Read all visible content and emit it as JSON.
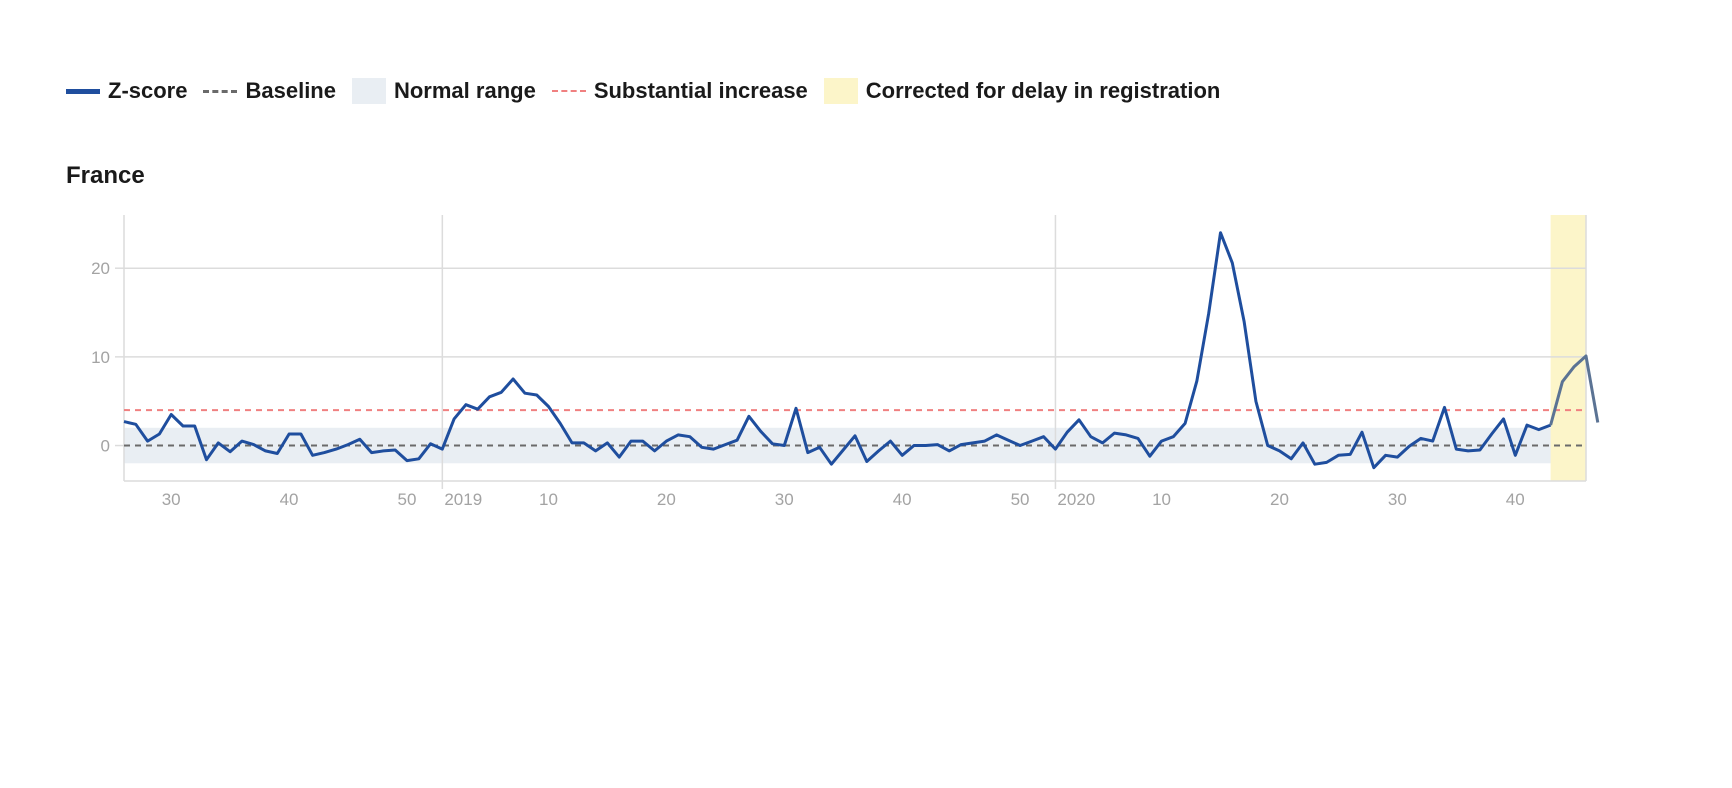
{
  "legend": {
    "zscore": "Z-score",
    "baseline": "Baseline",
    "normal_range": "Normal range",
    "substantial_increase": "Substantial increase",
    "corrected": "Corrected for delay in registration"
  },
  "colors": {
    "zscore": "#1f4e9e",
    "zscore_corrected": "#5b7394",
    "baseline": "#6a6a6a",
    "normal_range": "#e9eef3",
    "substantial_increase": "#f08080",
    "corrected_band": "#fcf5c9",
    "grid": "#dcdcdc",
    "tick_text": "#a3a3a3"
  },
  "chart_data": {
    "type": "line",
    "title": "France",
    "xlabel": "",
    "ylabel": "",
    "ylim": [
      -4,
      26
    ],
    "yticks": [
      0,
      10,
      20
    ],
    "x_axis_type": "iso-week",
    "x_start": {
      "year": 2018,
      "week": 26
    },
    "x_end": {
      "year": 2020,
      "week": 46
    },
    "weeks_per_year": {
      "2018": 52,
      "2019": 52,
      "2020": 53
    },
    "xticks": [
      {
        "label": "30",
        "year": 2018,
        "week": 30
      },
      {
        "label": "40",
        "year": 2018,
        "week": 40
      },
      {
        "label": "50",
        "year": 2018,
        "week": 50
      },
      {
        "label": "2019",
        "year": 2019,
        "week": 1
      },
      {
        "label": "10",
        "year": 2019,
        "week": 10
      },
      {
        "label": "20",
        "year": 2019,
        "week": 20
      },
      {
        "label": "30",
        "year": 2019,
        "week": 30
      },
      {
        "label": "40",
        "year": 2019,
        "week": 40
      },
      {
        "label": "50",
        "year": 2019,
        "week": 50
      },
      {
        "label": "2020",
        "year": 2020,
        "week": 1
      },
      {
        "label": "10",
        "year": 2020,
        "week": 10
      },
      {
        "label": "20",
        "year": 2020,
        "week": 20
      },
      {
        "label": "30",
        "year": 2020,
        "week": 30
      },
      {
        "label": "40",
        "year": 2020,
        "week": 40
      }
    ],
    "year_lines": [
      {
        "year": 2019,
        "week": 1
      },
      {
        "year": 2020,
        "week": 1
      }
    ],
    "baseline": 0,
    "normal_range": [
      -2,
      2
    ],
    "substantial_increase": 4,
    "corrected_from": {
      "year": 2020,
      "week": 43
    },
    "series": [
      {
        "values": [
          2.7,
          2.4,
          0.5,
          1.3,
          3.5,
          2.2,
          2.2,
          -1.6,
          0.3,
          -0.7,
          0.5,
          0.1,
          -0.6,
          -0.9,
          1.3,
          1.3,
          -1.1,
          -0.8,
          -0.4,
          0.1,
          0.7,
          -0.8,
          -0.6,
          -0.5,
          -1.7,
          -1.5,
          0.2,
          -0.4,
          3.0,
          4.6,
          4.1,
          5.5,
          6.0,
          7.5,
          5.9,
          5.7,
          4.4,
          2.5,
          0.3,
          0.3,
          -0.6,
          0.3,
          -1.3,
          0.5,
          0.5,
          -0.6,
          0.5,
          1.2,
          1.0,
          -0.2,
          -0.4,
          0.1,
          0.6,
          3.3,
          1.6,
          0.2,
          0.0,
          4.2,
          -0.8,
          -0.2,
          -2.1,
          -0.5,
          1.1,
          -1.8,
          -0.6,
          0.5,
          -1.1,
          0.0,
          0.0,
          0.1,
          -0.6,
          0.1,
          0.3,
          0.5,
          1.2,
          0.6,
          0.0,
          0.5,
          1.0,
          -0.4,
          1.5,
          2.9,
          1.0,
          0.3,
          1.4,
          1.2,
          0.8,
          -1.2,
          0.5,
          1.0,
          2.5,
          7.3,
          14.9,
          24.0,
          20.6,
          14.0,
          5.0,
          0.0,
          -0.6,
          -1.5,
          0.3,
          -2.1,
          -1.9,
          -1.1,
          -1.0,
          1.5,
          -2.5,
          -1.1,
          -1.3,
          -0.1,
          0.8,
          0.5,
          4.3,
          -0.4,
          -0.6,
          -0.5,
          1.3,
          3.0,
          -1.1,
          2.3,
          1.8,
          2.3,
          7.2,
          8.9,
          10.1,
          2.6
        ]
      }
    ]
  }
}
